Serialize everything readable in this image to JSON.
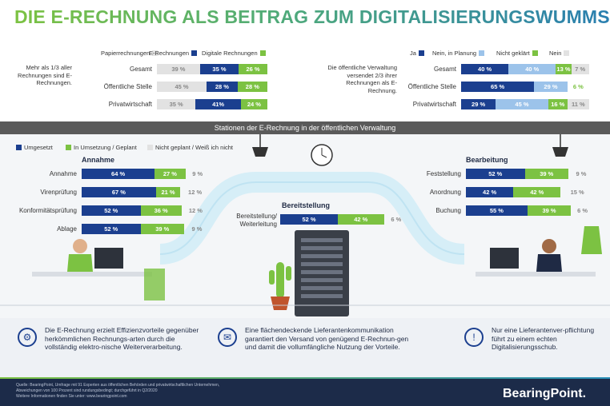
{
  "title": "DIE E-RECHNUNG ALS BEITRAG ZUM DIGITALISIERUNGSWUMMS",
  "colors": {
    "dark_blue": "#1b3f8f",
    "light_blue": "#9cc3ea",
    "green": "#7cc242",
    "gray": "#e2e2e2",
    "footer": "#1c2b49"
  },
  "top_left": {
    "legend": [
      "Papierrechnungen",
      "E-Rechnungen",
      "Digitale Rechnungen"
    ],
    "note": "Mehr als 1/3 aller Rechnungen sind E-Rechnungen.",
    "rows": [
      {
        "label": "Gesamt",
        "values": [
          "39 %",
          "35 %",
          "26 %"
        ]
      },
      {
        "label": "Öffentliche Stelle",
        "values": [
          "45 %",
          "28 %",
          "28 %"
        ]
      },
      {
        "label": "Privatwirtschaft",
        "values": [
          "35 %",
          "41%",
          "24 %"
        ]
      }
    ]
  },
  "top_right": {
    "legend": [
      "Ja",
      "Nein, in Planung",
      "Nicht geklärt",
      "Nein"
    ],
    "note": "Die öffentliche Verwaltung versendet 2/3 ihrer Rechnungen als E-Rechnung.",
    "rows": [
      {
        "label": "Gesamt",
        "values": [
          "40 %",
          "40 %",
          "13 %",
          "7 %"
        ]
      },
      {
        "label": "Öffentliche Stelle",
        "values": [
          "65 %",
          "29 %",
          "6 %"
        ]
      },
      {
        "label": "Privatwirtschaft",
        "values": [
          "29 %",
          "45 %",
          "16 %",
          "11 %"
        ]
      }
    ]
  },
  "band_title": "Stationen der E-Rechnung in der öffentlichen Verwaltung",
  "mid_legend": [
    "Umgesetzt",
    "In Umsetzung / Geplant",
    "Nicht geplant / Weiß ich nicht"
  ],
  "annahme": {
    "title": "Annahme",
    "rows": [
      {
        "label": "Annahme",
        "values": [
          "64 %",
          "27 %",
          "9 %"
        ]
      },
      {
        "label": "Virenprüfung",
        "values": [
          "67 %",
          "21 %",
          "12 %"
        ]
      },
      {
        "label": "Konformitätsprüfung",
        "values": [
          "52 %",
          "36 %",
          "12 %"
        ]
      },
      {
        "label": "Ablage",
        "values": [
          "52 %",
          "39 %",
          "9 %"
        ]
      }
    ]
  },
  "bereitstellung": {
    "title": "Bereitstellung",
    "rows": [
      {
        "label": "Bereitstellung/ Weiterleitung",
        "values": [
          "52 %",
          "42 %",
          "6 %"
        ]
      }
    ]
  },
  "bearbeitung": {
    "title": "Bearbeitung",
    "rows": [
      {
        "label": "Feststellung",
        "values": [
          "52 %",
          "39 %",
          "9 %"
        ]
      },
      {
        "label": "Anordnung",
        "values": [
          "42 %",
          "42 %",
          "15 %"
        ]
      },
      {
        "label": "Buchung",
        "values": [
          "55 %",
          "39 %",
          "6 %"
        ]
      }
    ]
  },
  "takeaways": [
    "Die E-Rechnung erzielt Effizienzvorteile gegenüber herkömmlichen Rechnungs-arten durch die vollständig elektro-nische Weiterverarbeitung.",
    "Eine flächendeckende Lieferantenkommunikation garantiert den Versand von genügend E-Rechnun-gen und damit die vollumfängliche Nutzung der Vorteile.",
    "Nur eine Lieferantenver-pflichtung führt zu einem echten Digitalisierungsschub."
  ],
  "footer": {
    "source": "Quelle: BearingPoint, Umfrage mit 91 Experten aus öffentlichen Behörden und privatwirtschaftlichen Unternehmen,",
    "source2": "Abweichungen von 100 Prozent sind rundungsbedingt; durchgeführt in Q2/2020",
    "more": "Weitere Informationen finden Sie unter: www.bearingpoint.com",
    "logo": "BearingPoint."
  }
}
